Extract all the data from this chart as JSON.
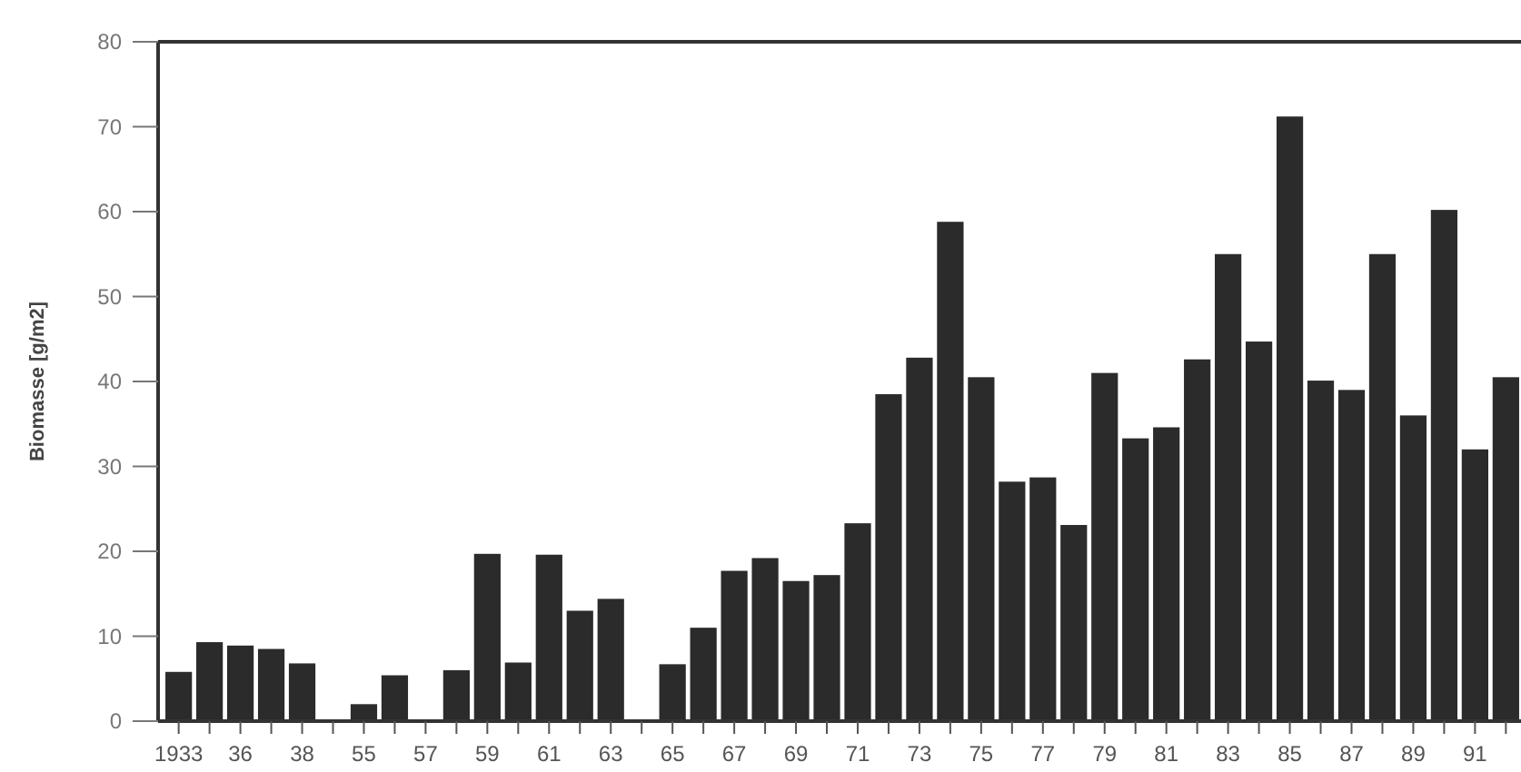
{
  "chart_data": {
    "type": "bar",
    "ylabel": "Biomasse [g/m2]",
    "categories": [
      "1933",
      null,
      "36",
      null,
      "38",
      null,
      "55",
      null,
      "57",
      null,
      "59",
      null,
      "61",
      null,
      "63",
      null,
      "65",
      null,
      "67",
      null,
      "69",
      null,
      "71",
      null,
      "73",
      null,
      "75",
      null,
      "77",
      null,
      "79",
      null,
      "81",
      null,
      "83",
      null,
      "85",
      null,
      "87",
      null,
      "89",
      null,
      "91",
      null
    ],
    "values": [
      5.8,
      9.3,
      8.9,
      8.5,
      6.8,
      0,
      2,
      5.4,
      0,
      6,
      19.7,
      6.9,
      19.6,
      13,
      14.4,
      0,
      6.7,
      11,
      17.7,
      19.2,
      16.5,
      17.2,
      23.3,
      38.5,
      42.8,
      58.8,
      40.5,
      28.2,
      28.7,
      23.1,
      41,
      33.3,
      34.6,
      42.6,
      55,
      44.7,
      71.2,
      40.1,
      39,
      55,
      36,
      60.2,
      32,
      40.5
    ],
    "color": "#2b2b2b",
    "ylim": [
      0,
      80
    ],
    "yticks": [
      0,
      10,
      20,
      30,
      40,
      50,
      60,
      70,
      80
    ],
    "grid": false
  }
}
